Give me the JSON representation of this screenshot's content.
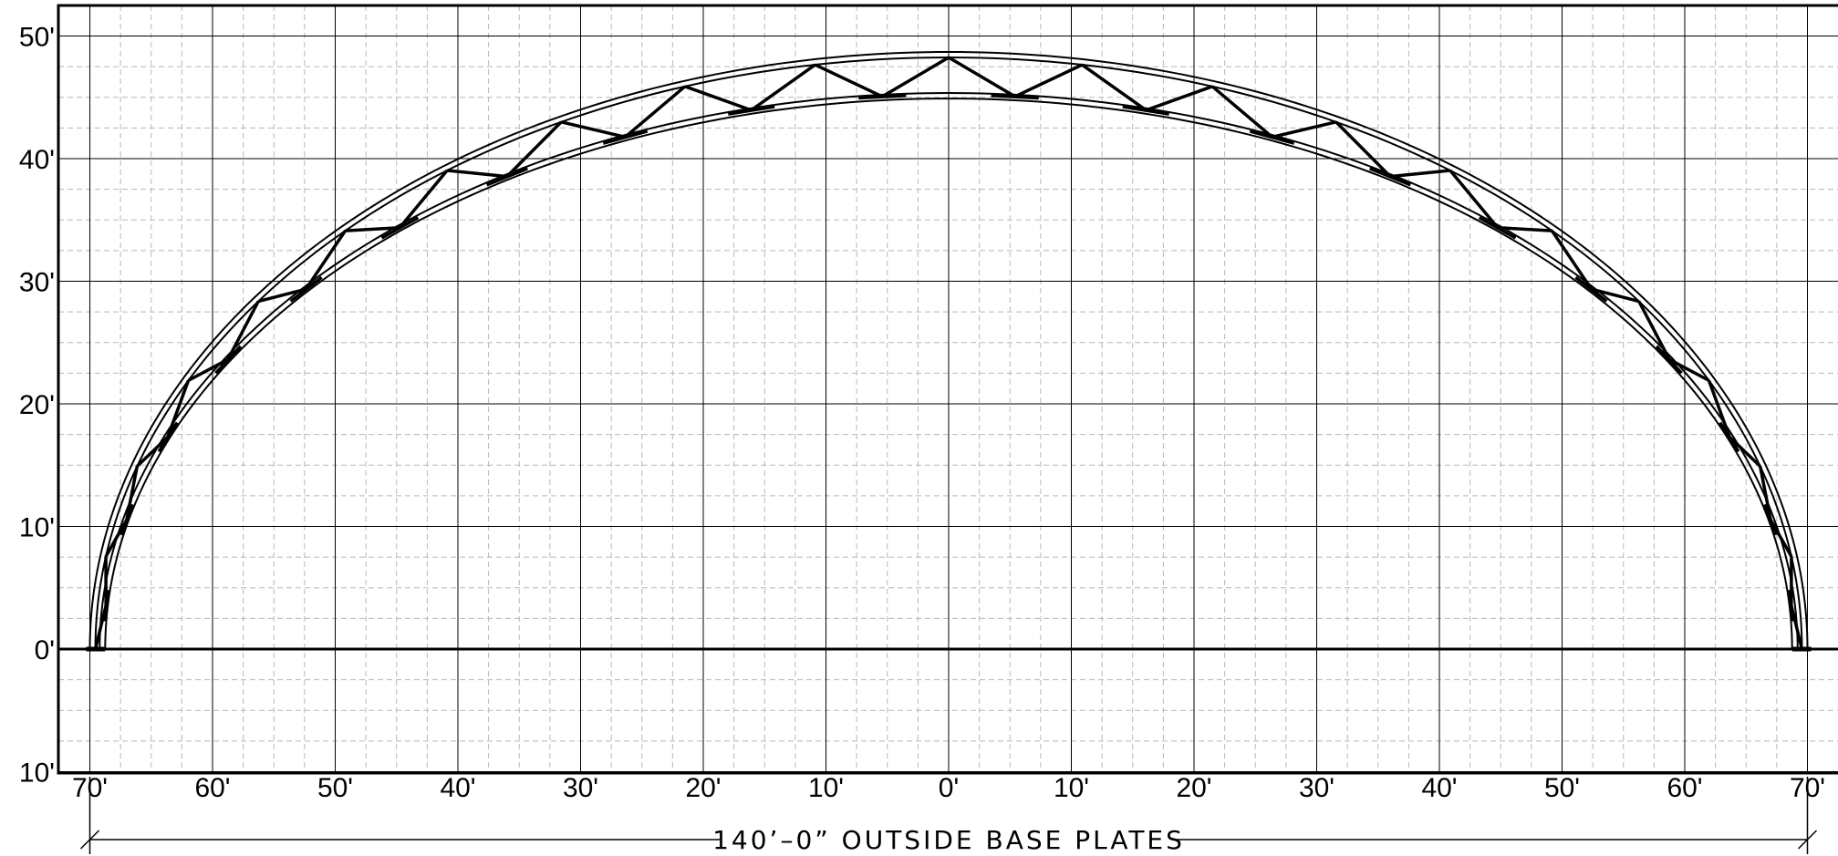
{
  "diagram": {
    "units": "ft",
    "y_axis_labels": [
      {
        "text": "50'",
        "value": 50
      },
      {
        "text": "40'",
        "value": 40
      },
      {
        "text": "30'",
        "value": 30
      },
      {
        "text": "20'",
        "value": 20
      },
      {
        "text": "10'",
        "value": 10
      },
      {
        "text": "0'",
        "value": 0
      },
      {
        "text": "10'",
        "value": -10
      }
    ],
    "x_axis_labels": [
      {
        "text": "70'",
        "value": -70
      },
      {
        "text": "60'",
        "value": -60
      },
      {
        "text": "50'",
        "value": -50
      },
      {
        "text": "40'",
        "value": -40
      },
      {
        "text": "30'",
        "value": -30
      },
      {
        "text": "20'",
        "value": -20
      },
      {
        "text": "10'",
        "value": -10
      },
      {
        "text": "0'",
        "value": 0
      },
      {
        "text": "10'",
        "value": 10
      },
      {
        "text": "20'",
        "value": 20
      },
      {
        "text": "30'",
        "value": 30
      },
      {
        "text": "40'",
        "value": 40
      },
      {
        "text": "50'",
        "value": 50
      },
      {
        "text": "60'",
        "value": 60
      },
      {
        "text": "70'",
        "value": 70
      }
    ],
    "dimension_label": "140’–0” OUTSIDE BASE PLATES",
    "arch": {
      "span_outside_ft": 140,
      "outer_rise_ft": 48.7,
      "inner_half_span_ft": 69.2,
      "inner_rise_ft": 45.0,
      "panels_per_side": 10
    }
  }
}
